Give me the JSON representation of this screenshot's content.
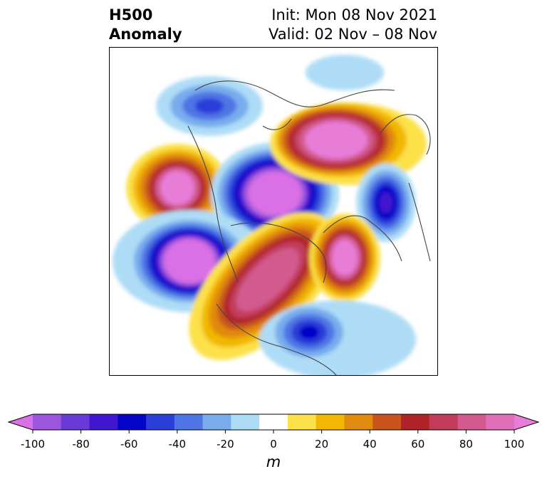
{
  "title": {
    "line1": "H500",
    "line2": "Anomaly"
  },
  "subtitle": {
    "line1": "Init: Mon 08 Nov 2021",
    "line2": "Valid: 02 Nov – 08 Nov"
  },
  "colorbar": {
    "unit": "m",
    "bounds": [
      -100,
      -90,
      -80,
      -70,
      -60,
      -50,
      -40,
      -30,
      -20,
      -10,
      10,
      20,
      30,
      40,
      50,
      60,
      70,
      80,
      90,
      100
    ],
    "colors": [
      "#d970e6",
      "#9c55dd",
      "#6a3ad6",
      "#3f17cf",
      "#0505c8",
      "#2a3ed8",
      "#4f75e5",
      "#78aced",
      "#aedcf6",
      "#ffffff",
      "#fce14a",
      "#f2b704",
      "#e08a10",
      "#c8561c",
      "#b02329",
      "#c23c5a",
      "#d25a8e",
      "#df6fb8",
      "#e87dd8"
    ],
    "ticks": [
      "-100",
      "-80",
      "-60",
      "-40",
      "-20",
      "0",
      "20",
      "40",
      "60",
      "80",
      "100"
    ],
    "extend": "both"
  },
  "map": {
    "projection": "north-polar-stereographic",
    "field": "500 hPa geopotential height anomaly"
  }
}
